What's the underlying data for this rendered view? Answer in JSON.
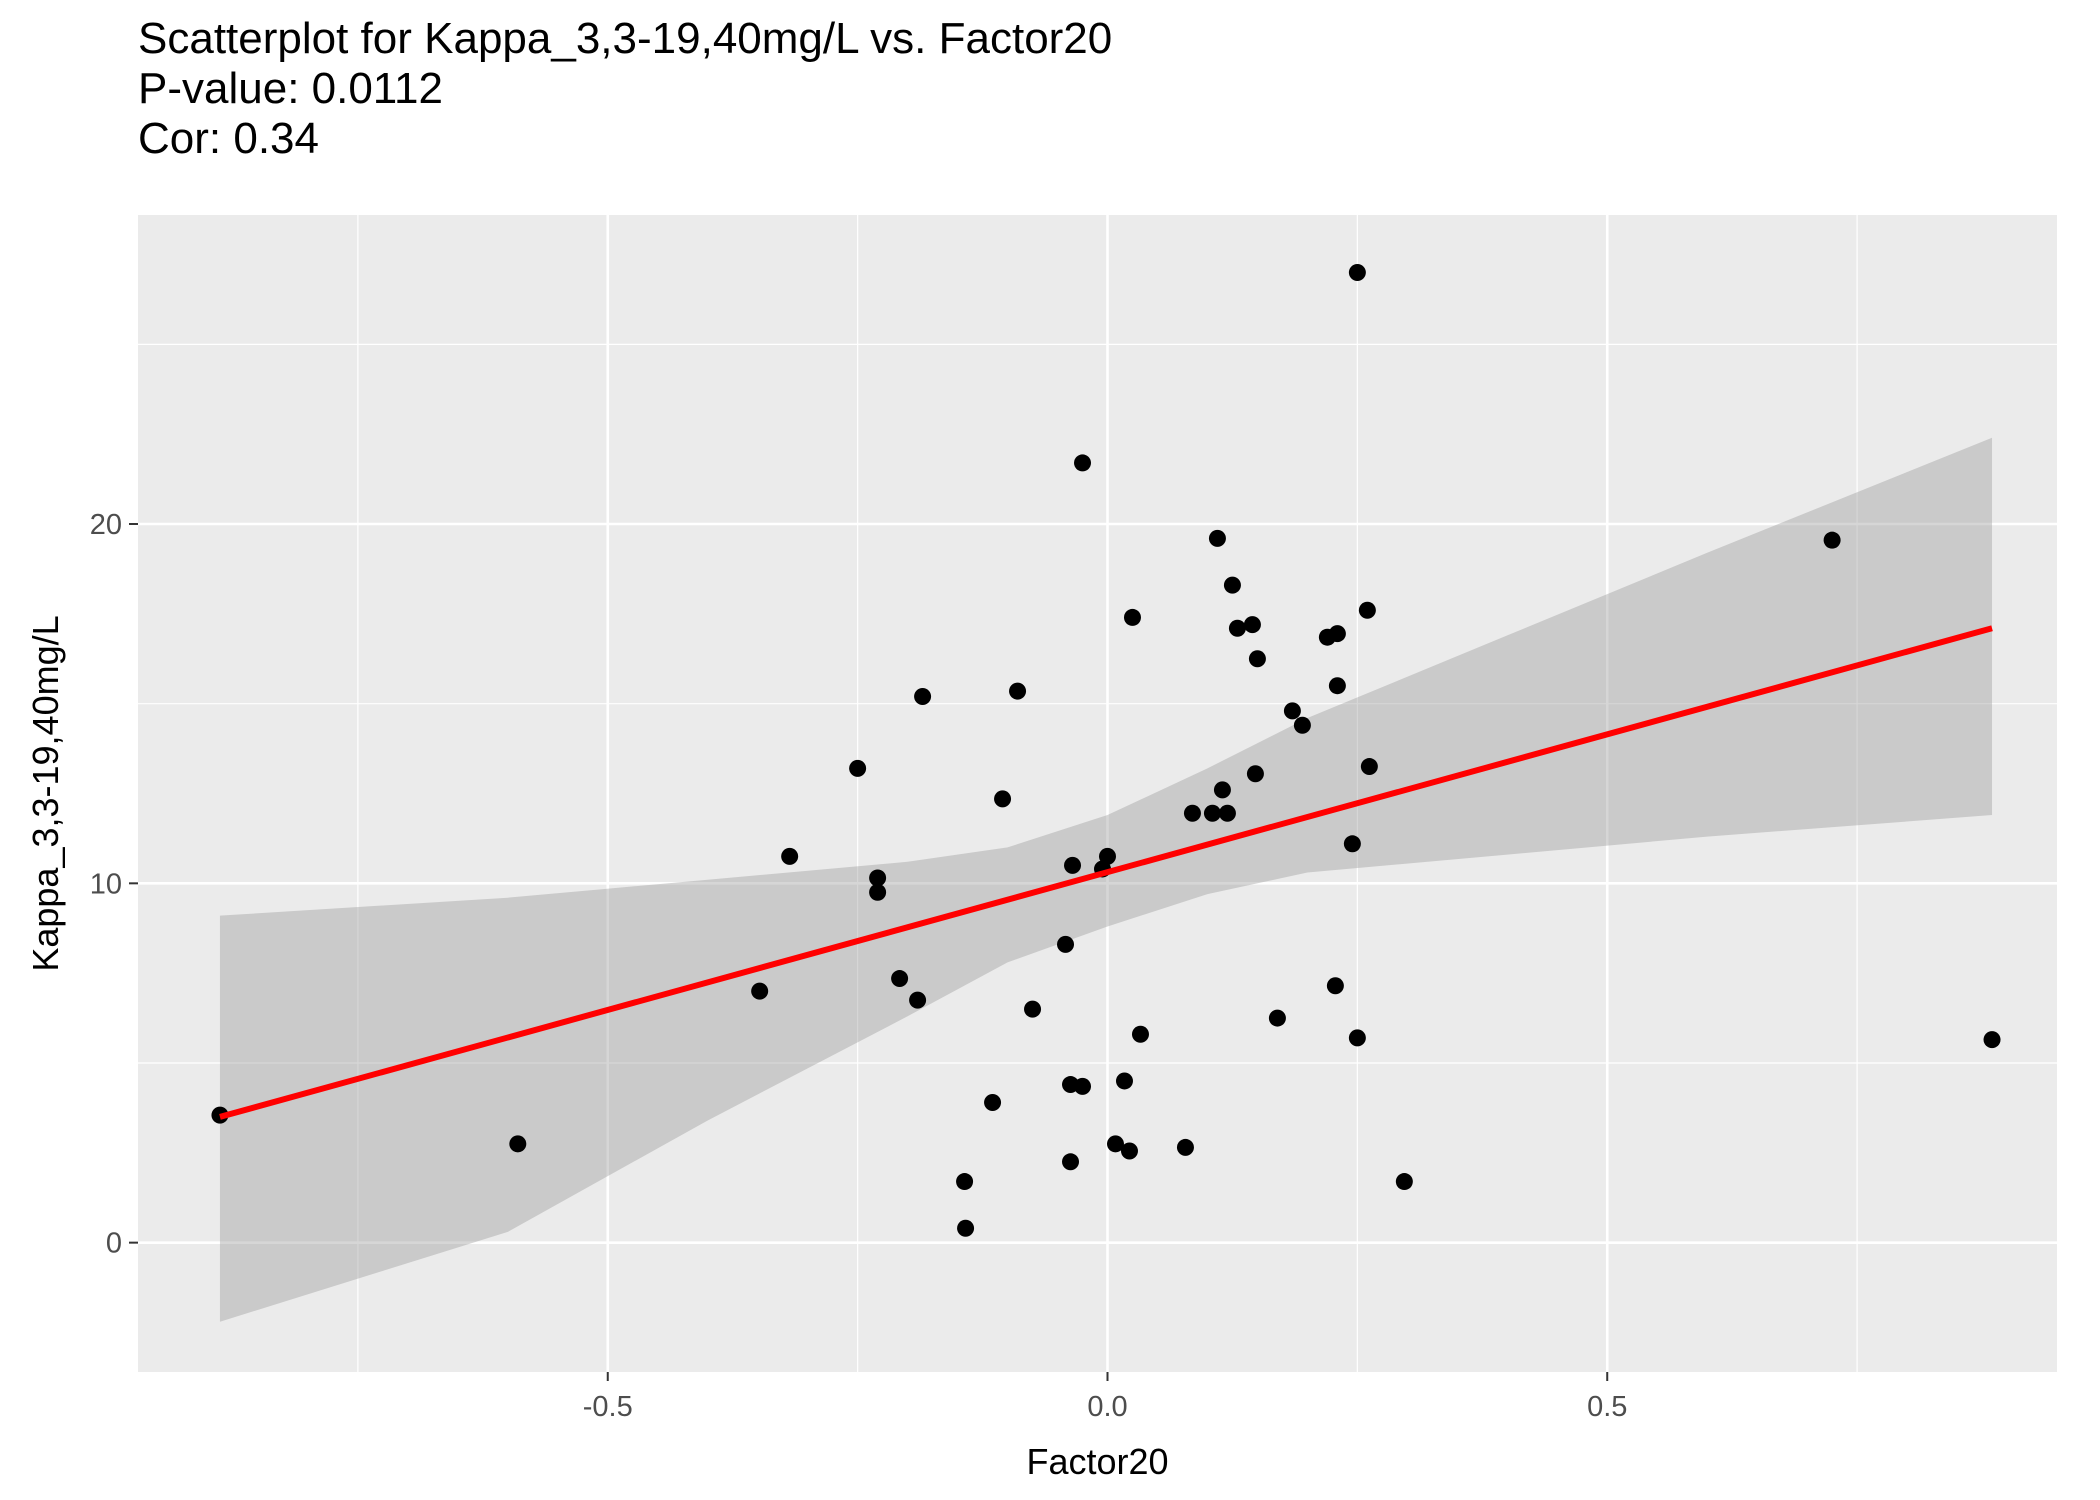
{
  "chart_data": {
    "type": "scatter",
    "title_lines": [
      "Scatterplot for Kappa_3,3-19,40mg/L vs. Factor20",
      "P-value: 0.0112",
      "Cor: 0.34"
    ],
    "xlabel": "Factor20",
    "ylabel": "Kappa_3,3-19,40mg/L",
    "xlim": [
      -0.97,
      0.95
    ],
    "ylim": [
      -3.6,
      28.6
    ],
    "x_ticks": [
      {
        "value": -0.5,
        "label": "-0.5"
      },
      {
        "value": 0.0,
        "label": "0.0"
      },
      {
        "value": 0.5,
        "label": "0.5"
      }
    ],
    "y_ticks": [
      {
        "value": 0,
        "label": "0"
      },
      {
        "value": 10,
        "label": "10"
      },
      {
        "value": 20,
        "label": "20"
      }
    ],
    "grid": true,
    "colors": {
      "panel_background": "#ebebeb",
      "grid": "#ffffff",
      "points": "#000000",
      "fit_line": "#ff0000",
      "confidence_band": "#999999"
    },
    "points": [
      {
        "x": 0.25,
        "y": 27.0
      },
      {
        "x": -0.025,
        "y": 21.7
      },
      {
        "x": 0.11,
        "y": 19.6
      },
      {
        "x": 0.725,
        "y": 19.55
      },
      {
        "x": 0.125,
        "y": 18.3
      },
      {
        "x": 0.26,
        "y": 17.6
      },
      {
        "x": 0.025,
        "y": 17.4
      },
      {
        "x": 0.145,
        "y": 17.2
      },
      {
        "x": 0.13,
        "y": 17.1
      },
      {
        "x": 0.23,
        "y": 16.95
      },
      {
        "x": 0.22,
        "y": 16.85
      },
      {
        "x": 0.15,
        "y": 16.25
      },
      {
        "x": 0.23,
        "y": 15.5
      },
      {
        "x": -0.09,
        "y": 15.35
      },
      {
        "x": -0.185,
        "y": 15.2
      },
      {
        "x": 0.185,
        "y": 14.8
      },
      {
        "x": 0.195,
        "y": 14.4
      },
      {
        "x": -0.25,
        "y": 13.2
      },
      {
        "x": 0.262,
        "y": 13.25
      },
      {
        "x": 0.148,
        "y": 13.05
      },
      {
        "x": 0.115,
        "y": 12.6
      },
      {
        "x": -0.105,
        "y": 12.35
      },
      {
        "x": 0.085,
        "y": 11.95
      },
      {
        "x": 0.105,
        "y": 11.95
      },
      {
        "x": 0.12,
        "y": 11.95
      },
      {
        "x": 0.245,
        "y": 11.1
      },
      {
        "x": -0.318,
        "y": 10.75
      },
      {
        "x": 0.0,
        "y": 10.75
      },
      {
        "x": -0.035,
        "y": 10.5
      },
      {
        "x": -0.005,
        "y": 10.4
      },
      {
        "x": -0.23,
        "y": 10.15
      },
      {
        "x": -0.23,
        "y": 9.75
      },
      {
        "x": -0.042,
        "y": 8.3
      },
      {
        "x": -0.208,
        "y": 7.35
      },
      {
        "x": 0.228,
        "y": 7.15
      },
      {
        "x": -0.348,
        "y": 7.0
      },
      {
        "x": -0.19,
        "y": 6.75
      },
      {
        "x": -0.075,
        "y": 6.5
      },
      {
        "x": 0.17,
        "y": 6.25
      },
      {
        "x": 0.033,
        "y": 5.8
      },
      {
        "x": 0.25,
        "y": 5.7
      },
      {
        "x": 0.885,
        "y": 5.65
      },
      {
        "x": 0.017,
        "y": 4.5
      },
      {
        "x": -0.037,
        "y": 4.4
      },
      {
        "x": -0.025,
        "y": 4.35
      },
      {
        "x": -0.115,
        "y": 3.9
      },
      {
        "x": -0.888,
        "y": 3.55
      },
      {
        "x": -0.59,
        "y": 2.75
      },
      {
        "x": 0.008,
        "y": 2.75
      },
      {
        "x": 0.078,
        "y": 2.65
      },
      {
        "x": 0.022,
        "y": 2.55
      },
      {
        "x": -0.037,
        "y": 2.25
      },
      {
        "x": -0.143,
        "y": 1.7
      },
      {
        "x": 0.297,
        "y": 1.7
      },
      {
        "x": -0.142,
        "y": 0.4
      }
    ],
    "fit_line": {
      "x": [
        -0.888,
        0.885
      ],
      "y": [
        3.5,
        17.1
      ]
    },
    "confidence_band": {
      "x": [
        -0.888,
        -0.6,
        -0.4,
        -0.2,
        -0.1,
        0.0,
        0.1,
        0.2,
        0.4,
        0.6,
        0.885
      ],
      "upper": [
        9.1,
        9.6,
        10.1,
        10.6,
        11.0,
        11.9,
        13.2,
        14.6,
        16.9,
        19.2,
        22.4
      ],
      "lower": [
        -2.2,
        0.3,
        3.4,
        6.3,
        7.8,
        8.8,
        9.7,
        10.3,
        10.8,
        11.3,
        11.9
      ]
    }
  }
}
